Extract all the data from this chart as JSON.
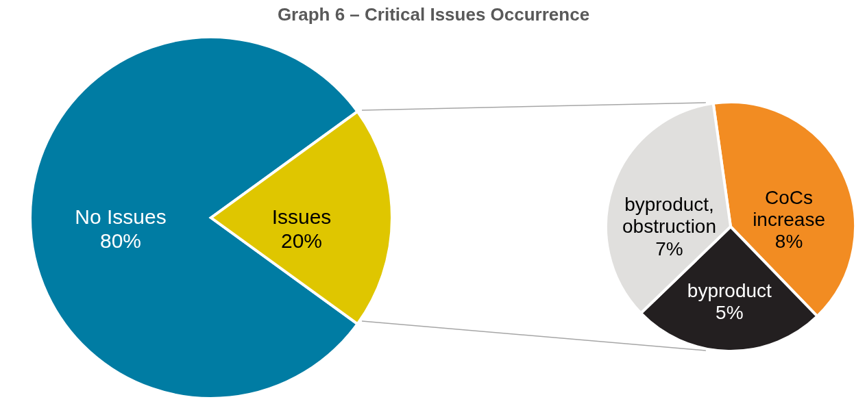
{
  "chart_data": [
    {
      "type": "pie",
      "title": "Graph 6 – Critical Issues Occurrence",
      "categories": [
        "No Issues",
        "Issues"
      ],
      "values": [
        80,
        20
      ],
      "value_labels": [
        "80%",
        "20%"
      ],
      "colors": [
        "#007ca3",
        "#dfc600"
      ]
    },
    {
      "type": "pie",
      "categories": [
        "CoCs increase",
        "byproduct",
        "byproduct, obstruction"
      ],
      "values": [
        8,
        5,
        7
      ],
      "value_labels": [
        "8%",
        "5%",
        "7%"
      ],
      "colors": [
        "#f28c22",
        "#231f20",
        "#e0dfdd"
      ]
    }
  ]
}
